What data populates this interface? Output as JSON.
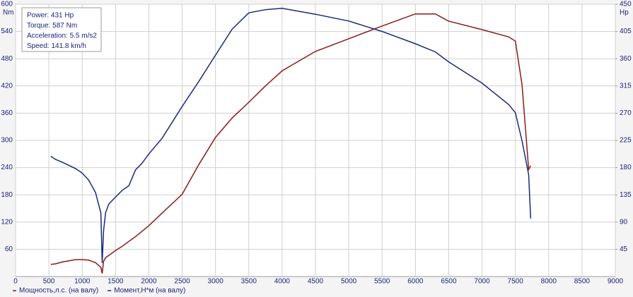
{
  "chart_data": {
    "type": "line",
    "annotations": [
      "Power: 431 Hp",
      "Torque: 587 Nm",
      "Acceleration: 5.5 m/s2",
      "Speed: 141.8 km/h"
    ],
    "y_label": "Nm",
    "y2_label": "Hp",
    "x": [
      530,
      600,
      700,
      800,
      900,
      1000,
      1100,
      1200,
      1280,
      1300,
      1320,
      1350,
      1400,
      1500,
      1600,
      1700,
      1800,
      1900,
      2000,
      2200,
      2500,
      2750,
      3000,
      3250,
      3500,
      3750,
      4000,
      4500,
      5000,
      5500,
      6000,
      6300,
      6500,
      7000,
      7400,
      7500,
      7600,
      7700,
      7730
    ],
    "series": [
      {
        "name": "Мощность,л.с. (на валу)",
        "color": "#8b1a1a",
        "axis": "y2",
        "values": [
          20,
          21,
          24,
          26,
          28,
          28,
          27,
          23,
          15,
          5,
          25,
          31,
          35,
          43,
          50,
          58,
          66,
          75,
          84,
          105,
          136,
          185,
          230,
          262,
          288,
          315,
          340,
          372,
          393,
          414,
          434,
          434,
          422,
          408,
          396,
          389,
          317,
          177,
          183
        ]
      },
      {
        "name": "Момент,Н*м (на валу)",
        "color": "#1a2a7a",
        "values": [
          265,
          258,
          252,
          245,
          238,
          228,
          212,
          185,
          140,
          30,
          100,
          140,
          160,
          175,
          190,
          200,
          235,
          250,
          270,
          305,
          375,
          430,
          488,
          545,
          581,
          588,
          591,
          578,
          563,
          540,
          513,
          495,
          473,
          426,
          379,
          361,
          299,
          224,
          128
        ]
      }
    ],
    "xlim": [
      0,
      9000
    ],
    "xticks": [
      0,
      500,
      1000,
      1500,
      2000,
      2500,
      3000,
      3500,
      4000,
      4500,
      5000,
      5500,
      6000,
      6500,
      7000,
      7500,
      8000,
      8500,
      9000
    ],
    "ylim": [
      0,
      600
    ],
    "yticks": [
      60,
      120,
      180,
      240,
      300,
      360,
      420,
      480,
      540,
      600
    ],
    "y2lim": [
      0,
      450
    ],
    "y2ticks": [
      45,
      90,
      135,
      180,
      225,
      270,
      315,
      360,
      405,
      450
    ],
    "grid": true
  }
}
